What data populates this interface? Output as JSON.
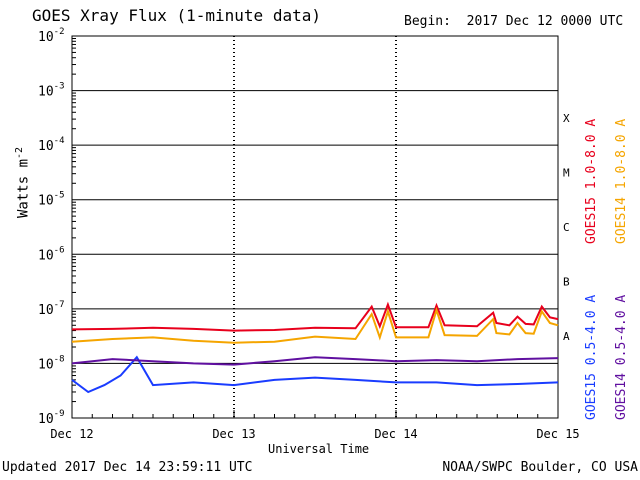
{
  "header": {
    "title": "GOES Xray Flux (1-minute data)",
    "begin": "Begin:  2017 Dec 12 0000 UTC"
  },
  "footer": {
    "updated": "Updated 2017 Dec 14 23:59:11 UTC",
    "credit": "NOAA/SWPC Boulder, CO USA"
  },
  "axes": {
    "ylabel": "Watts m",
    "ylabel_exp": "-2",
    "xlabel": "Universal Time"
  },
  "legend": {
    "right_top": [
      {
        "name": "GOES15 1.0-8.0 A",
        "color": "#e8001c"
      },
      {
        "name": "GOES14 1.0-8.0 A",
        "color": "#f5a500"
      }
    ],
    "right_bottom": [
      {
        "name": "GOES15 0.5-4.0 A",
        "color": "#1a3cff"
      },
      {
        "name": "GOES14 0.5-4.0 A",
        "color": "#6010a0"
      }
    ]
  },
  "chart_data": {
    "type": "line",
    "y_scale": "log",
    "ylim": [
      1e-09,
      0.01
    ],
    "y_ticks": [
      {
        "base": "10",
        "exp": "-9"
      },
      {
        "base": "10",
        "exp": "-8"
      },
      {
        "base": "10",
        "exp": "-7"
      },
      {
        "base": "10",
        "exp": "-6"
      },
      {
        "base": "10",
        "exp": "-5"
      },
      {
        "base": "10",
        "exp": "-4"
      },
      {
        "base": "10",
        "exp": "-3"
      },
      {
        "base": "10",
        "exp": "-2"
      }
    ],
    "x_ticks": [
      "Dec 12",
      "Dec 13",
      "Dec 14",
      "Dec 15"
    ],
    "xlim_days": [
      0,
      3
    ],
    "flare_classes": [
      {
        "label": "A",
        "flux": 1e-08
      },
      {
        "label": "B",
        "flux": 1e-07
      },
      {
        "label": "C",
        "flux": 1e-06
      },
      {
        "label": "M",
        "flux": 1e-05
      },
      {
        "label": "X",
        "flux": 0.0001
      }
    ],
    "grid": "horizontal at decades, dotted vertical at day boundaries",
    "series": [
      {
        "name": "GOES15 1.0-8.0 A",
        "color": "#e8001c",
        "x": [
          0,
          0.25,
          0.5,
          0.75,
          1.0,
          1.25,
          1.5,
          1.75,
          1.85,
          1.9,
          1.95,
          2.0,
          2.2,
          2.25,
          2.3,
          2.5,
          2.6,
          2.62,
          2.7,
          2.75,
          2.8,
          2.85,
          2.9,
          2.95,
          3.0
        ],
        "y": [
          4.2e-08,
          4.3e-08,
          4.5e-08,
          4.3e-08,
          4e-08,
          4.1e-08,
          4.5e-08,
          4.4e-08,
          1.1e-07,
          4.8e-08,
          1.2e-07,
          4.6e-08,
          4.6e-08,
          1.15e-07,
          5e-08,
          4.8e-08,
          8.5e-08,
          5.5e-08,
          5e-08,
          7.2e-08,
          5.3e-08,
          5.2e-08,
          1.1e-07,
          7e-08,
          6.5e-08
        ]
      },
      {
        "name": "GOES14 1.0-8.0 A",
        "color": "#f5a500",
        "x": [
          0,
          0.25,
          0.5,
          0.75,
          1.0,
          1.25,
          1.5,
          1.75,
          1.85,
          1.9,
          1.95,
          2.0,
          2.2,
          2.25,
          2.3,
          2.5,
          2.6,
          2.62,
          2.7,
          2.75,
          2.8,
          2.85,
          2.9,
          2.95,
          3.0
        ],
        "y": [
          2.5e-08,
          2.8e-08,
          3e-08,
          2.6e-08,
          2.4e-08,
          2.5e-08,
          3.1e-08,
          2.8e-08,
          8e-08,
          3e-08,
          9e-08,
          3e-08,
          3e-08,
          9.5e-08,
          3.3e-08,
          3.2e-08,
          6.5e-08,
          3.6e-08,
          3.4e-08,
          5.5e-08,
          3.6e-08,
          3.5e-08,
          9e-08,
          5.5e-08,
          5e-08
        ]
      },
      {
        "name": "GOES15 0.5-4.0 A",
        "color": "#1a3cff",
        "x": [
          0,
          0.1,
          0.2,
          0.3,
          0.4,
          0.5,
          0.75,
          1.0,
          1.25,
          1.5,
          1.75,
          2.0,
          2.25,
          2.5,
          2.75,
          3.0
        ],
        "y": [
          5e-09,
          3e-09,
          4e-09,
          6e-09,
          1.3e-08,
          4e-09,
          4.5e-09,
          4e-09,
          5e-09,
          5.5e-09,
          5e-09,
          4.5e-09,
          4.5e-09,
          4e-09,
          4.2e-09,
          4.5e-09
        ]
      },
      {
        "name": "GOES14 0.5-4.0 A",
        "color": "#6010a0",
        "x": [
          0,
          0.25,
          0.5,
          0.75,
          1.0,
          1.25,
          1.5,
          1.75,
          2.0,
          2.25,
          2.5,
          2.75,
          3.0
        ],
        "y": [
          1e-08,
          1.2e-08,
          1.1e-08,
          1e-08,
          9.5e-09,
          1.1e-08,
          1.3e-08,
          1.2e-08,
          1.1e-08,
          1.15e-08,
          1.1e-08,
          1.2e-08,
          1.25e-08
        ]
      }
    ]
  }
}
